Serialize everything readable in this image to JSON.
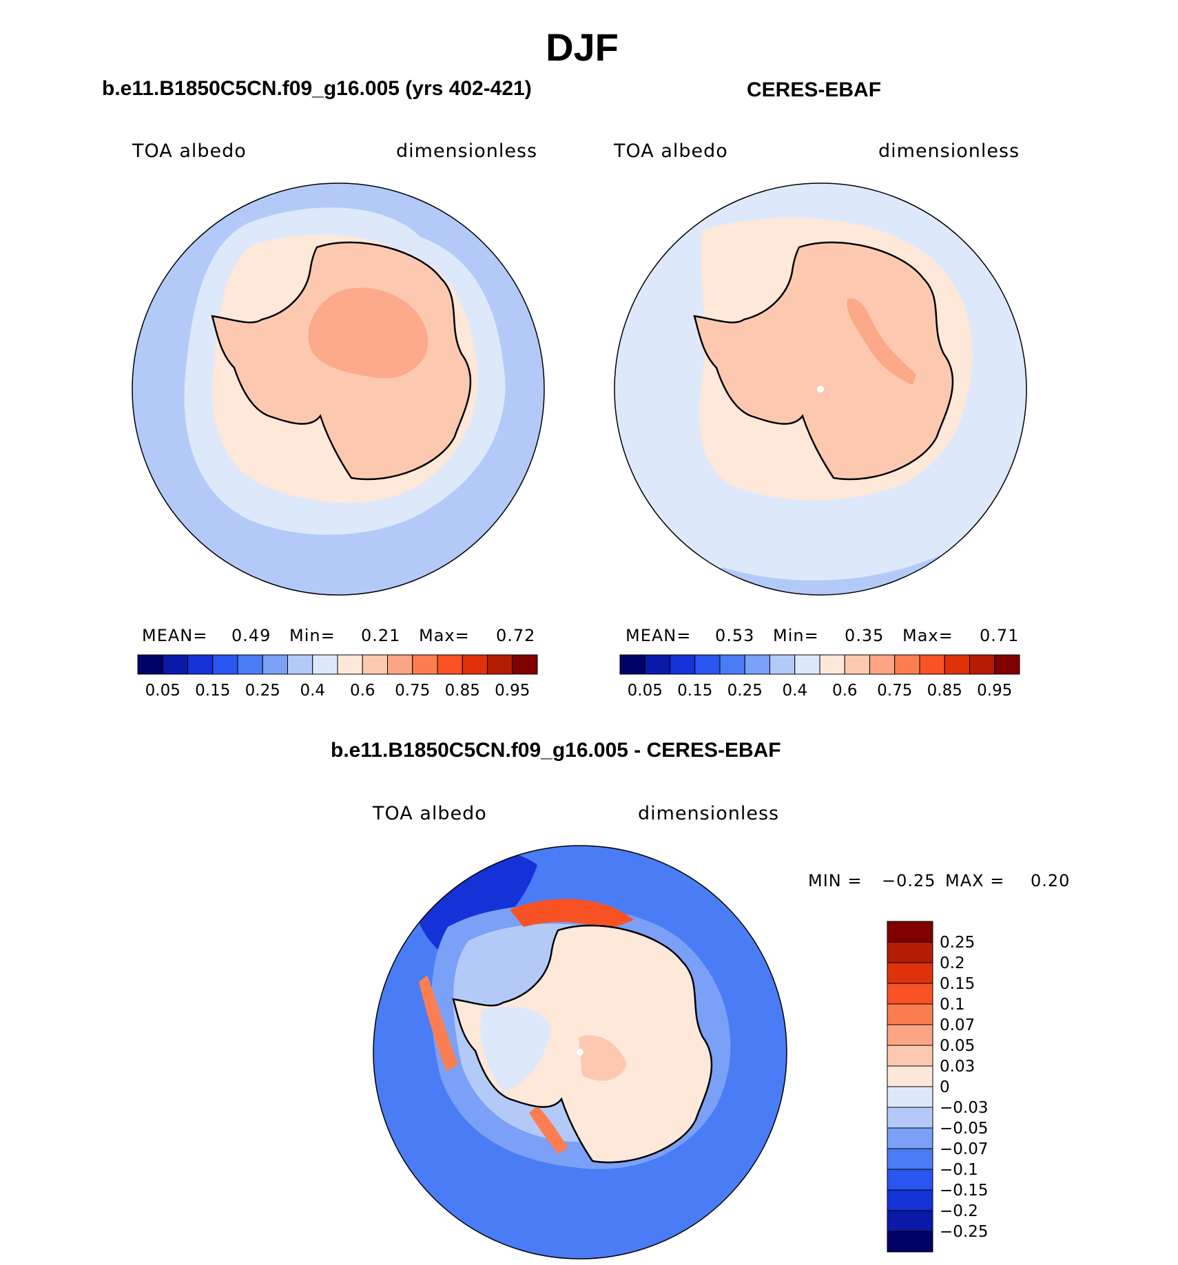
{
  "title": "DJF",
  "panels": {
    "model": {
      "title": "b.e11.B1850C5CN.f09_g16.005 (yrs 402-421)",
      "variable": "TOA albedo",
      "units": "dimensionless",
      "mean_label": "MEAN=",
      "mean": "0.49",
      "min_label": "Min=",
      "min": "0.21",
      "max_label": "Max=",
      "max": "0.72"
    },
    "obs": {
      "title": "CERES-EBAF",
      "variable": "TOA albedo",
      "units": "dimensionless",
      "mean_label": "MEAN=",
      "mean": "0.53",
      "min_label": "Min=",
      "min": "0.35",
      "max_label": "Max=",
      "max": "0.71"
    },
    "diff": {
      "title": "b.e11.B1850C5CN.f09_g16.005 - CERES-EBAF",
      "variable": "TOA albedo",
      "units": "dimensionless",
      "min_label": "MIN =",
      "min": "−0.25",
      "max_label": "MAX =",
      "max": "0.20"
    }
  },
  "colorbars": {
    "abs": {
      "colors": [
        "#000066",
        "#0a19a8",
        "#1432d6",
        "#2a55f0",
        "#4a7cf5",
        "#7aa0f7",
        "#b3caf9",
        "#dde9fb",
        "#fde8da",
        "#fcc9b0",
        "#fca585",
        "#fb7e52",
        "#f95225",
        "#e0320a",
        "#b51c04",
        "#800000"
      ],
      "tick_labels": [
        "0.05",
        "0.15",
        "0.25",
        "0.4",
        "0.6",
        "0.75",
        "0.85",
        "0.95"
      ]
    },
    "diff": {
      "colors": [
        "#800000",
        "#b51c04",
        "#e0320a",
        "#f95225",
        "#fb7e52",
        "#fca585",
        "#fcc9b0",
        "#fde8da",
        "#dde9fb",
        "#b3caf9",
        "#7aa0f7",
        "#4a7cf5",
        "#2a55f0",
        "#1432d6",
        "#0a19a8",
        "#000066"
      ],
      "tick_labels": [
        "0.25",
        "0.2",
        "0.15",
        "0.1",
        "0.07",
        "0.05",
        "0.03",
        "0",
        "−0.03",
        "−0.05",
        "−0.07",
        "−0.1",
        "−0.15",
        "−0.2",
        "−0.25"
      ]
    }
  },
  "map_colors": {
    "ocean_mid": "#b3caf9",
    "ocean_near": "#dde9fb",
    "sea_ice": "#fde8da",
    "land": "#fcc9b0",
    "high_land": "#fca585",
    "neg_strong": "#2a55f0",
    "neg_mid": "#4a7cf5",
    "neg_deep": "#1432d6",
    "pos_strong": "#f95225"
  }
}
